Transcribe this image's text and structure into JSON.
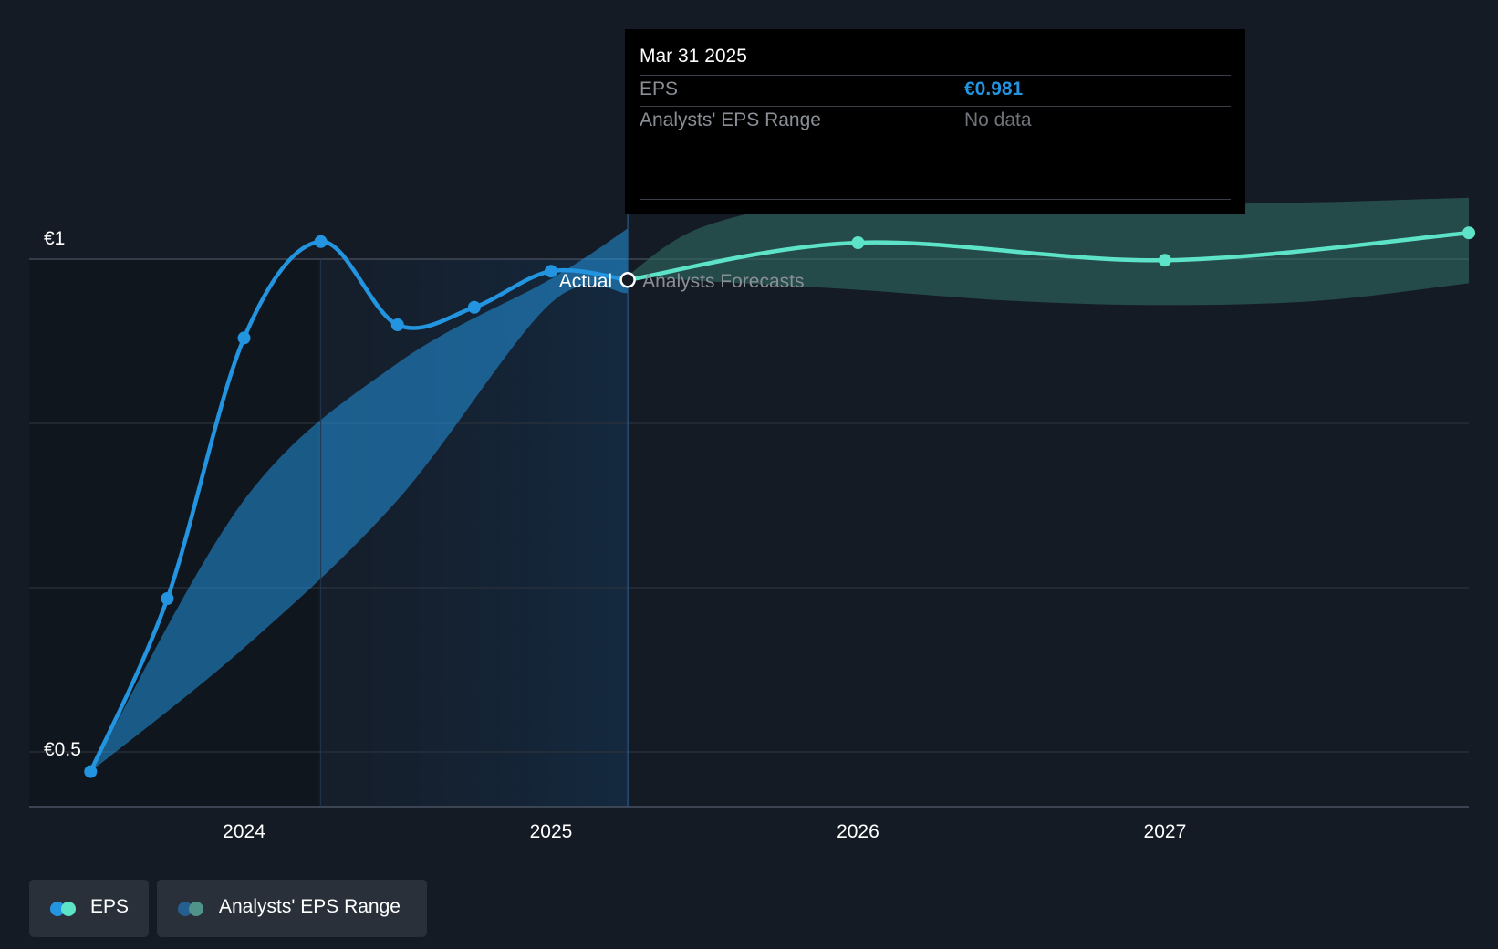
{
  "chart_data": {
    "type": "line",
    "title": "",
    "y_tick_labels": [
      "€1",
      "€0.5"
    ],
    "x_tick_labels": [
      "2024",
      "2025",
      "2026",
      "2027"
    ],
    "ylim": [
      0.5,
      1.0
    ],
    "xlim": [
      2023.3,
      2027.99
    ],
    "x_ticks": [
      2024.0,
      2025.0,
      2026.0,
      2027.0
    ],
    "y_gridlines": [
      1.0,
      0.85,
      0.7,
      0.55
    ],
    "grid": true,
    "legend_placement": "bottom-left",
    "regions": {
      "actual_label": "Actual",
      "forecast_label": "Analysts Forecasts",
      "divider_x": 2025.25,
      "highlight_start_x": 2024.25
    },
    "series": [
      {
        "name": "EPS",
        "kind": "actual",
        "color": "#2394df",
        "x": [
          2023.5,
          2023.75,
          2024.0,
          2024.25,
          2024.5,
          2024.75,
          2025.0,
          2025.25
        ],
        "y": [
          0.532,
          0.69,
          0.928,
          1.016,
          0.94,
          0.956,
          0.989,
          0.981
        ]
      },
      {
        "name": "EPS",
        "kind": "forecast",
        "color": "#5de4c8",
        "x": [
          2025.25,
          2026.0,
          2027.0,
          2027.99
        ],
        "y": [
          0.981,
          1.015,
          0.999,
          1.024
        ]
      }
    ],
    "ranges": [
      {
        "name": "Analysts' EPS Range",
        "kind": "actual",
        "color": "#2394df",
        "x": [
          2023.5,
          2024.0,
          2024.5,
          2025.0,
          2025.25
        ],
        "low": [
          0.532,
          0.645,
          0.78,
          0.96,
          0.969
        ],
        "high": [
          0.532,
          0.78,
          0.905,
          0.982,
          1.028
        ]
      },
      {
        "name": "Analysts' EPS Range",
        "kind": "forecast",
        "color": "#2e6a64",
        "x": [
          2025.25,
          2025.5,
          2026.0,
          2026.5,
          2027.0,
          2027.5,
          2027.99
        ],
        "low": [
          0.985,
          0.98,
          0.972,
          0.962,
          0.958,
          0.962,
          0.978
        ],
        "high": [
          0.985,
          1.03,
          1.058,
          1.052,
          1.05,
          1.052,
          1.056
        ]
      }
    ]
  },
  "tooltip": {
    "date": "Mar 31 2025",
    "rows": [
      {
        "label": "EPS",
        "value": "€0.981",
        "value_color": "#2394df"
      },
      {
        "label": "Analysts' EPS Range",
        "value": "No data",
        "value_color": "#6f747b"
      }
    ]
  },
  "legend": {
    "items": [
      {
        "label": "EPS",
        "colors": [
          "#2394df",
          "#5de4c8"
        ]
      },
      {
        "label": "Analysts' EPS Range",
        "colors": [
          "#245f8f",
          "#4f938b"
        ]
      }
    ]
  }
}
